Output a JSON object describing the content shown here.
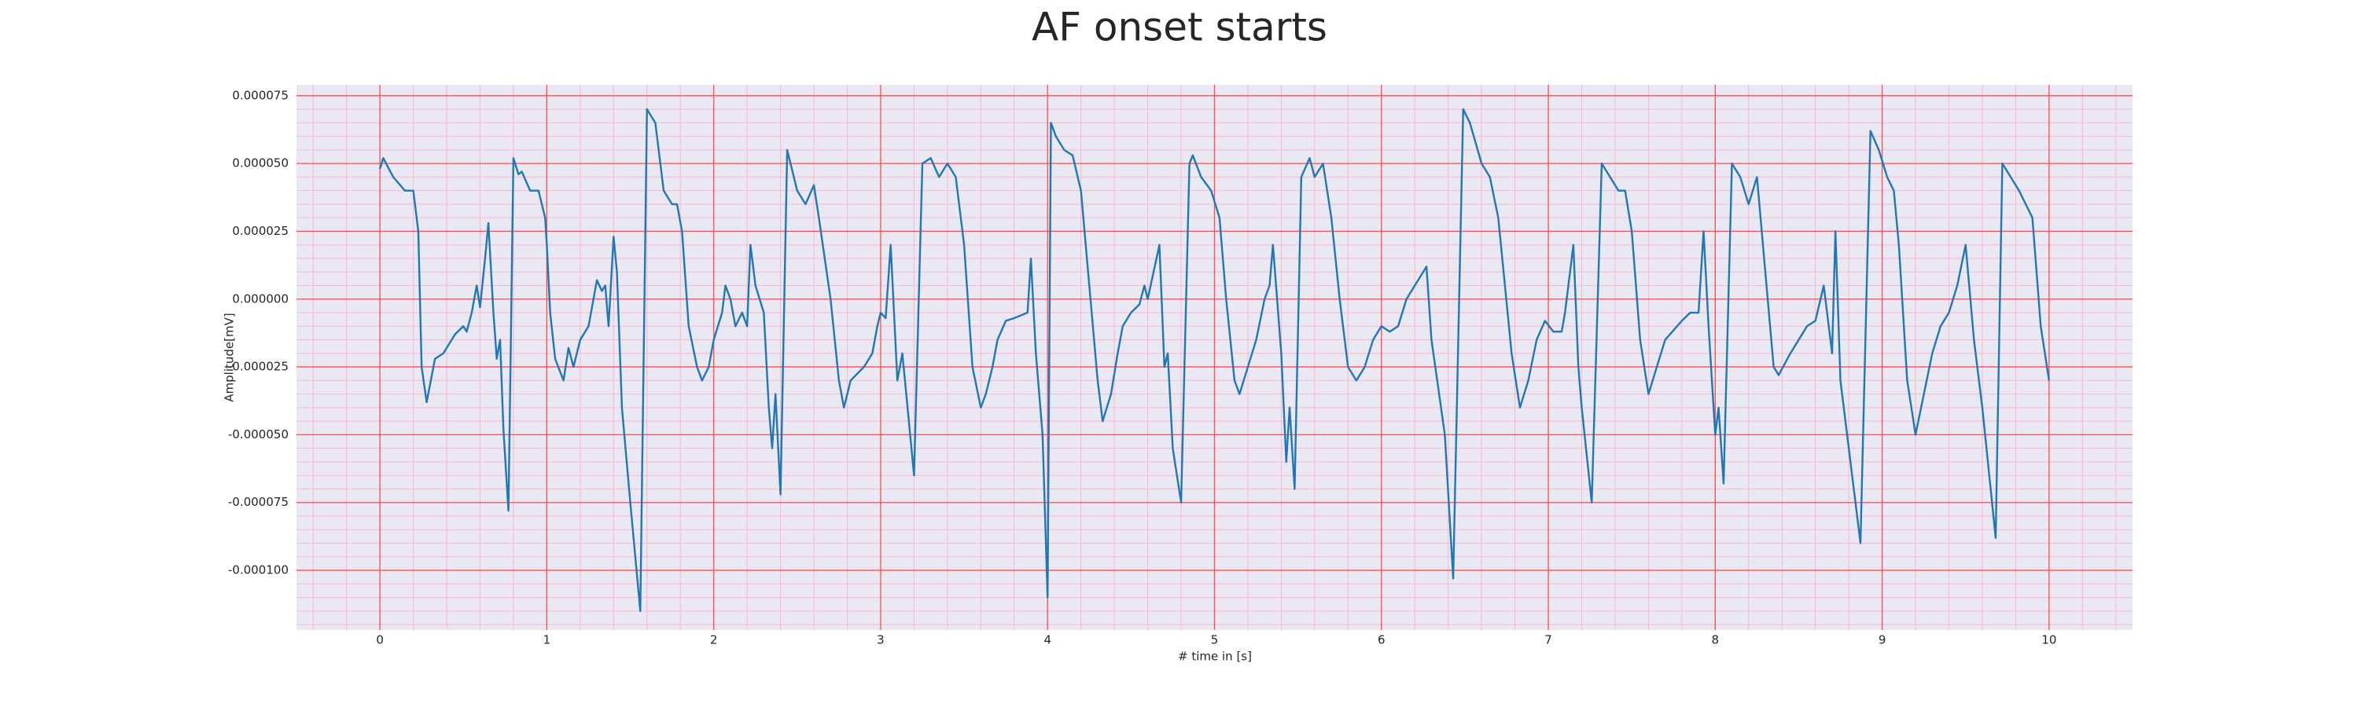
{
  "chart_data": {
    "type": "line",
    "title": "AF onset starts",
    "xlabel": "# time in [s]",
    "ylabel": "Amplitude[mV]",
    "color": "#1f77b4",
    "grid": true,
    "grid_color": "#ff4d4d",
    "minor_grid": {
      "x": 0.2,
      "y": 5e-06
    },
    "minor_grid_color": "#f7b8c8",
    "background": "#eae8f2",
    "xlim": [
      -0.5,
      10.5
    ],
    "ylim": [
      -0.000122,
      7.9e-05
    ],
    "xticks": [
      0,
      1,
      2,
      3,
      4,
      5,
      6,
      7,
      8,
      9,
      10
    ],
    "yticks": [
      7.5e-05,
      {
        "value": 5e-05,
        "label": "0.000050"
      },
      2.5e-05,
      {
        "value": 0,
        "label": "0.000000"
      },
      -2.5e-05,
      {
        "value": -5e-05,
        "label": "-0.000050"
      },
      -7.5e-05,
      {
        "value": -0.0001,
        "label": "-0.000100"
      }
    ],
    "x": [
      0,
      0.02,
      0.08,
      0.15,
      0.2,
      0.23,
      0.25,
      0.28,
      0.33,
      0.38,
      0.45,
      0.5,
      0.52,
      0.55,
      0.58,
      0.6,
      0.63,
      0.65,
      0.68,
      0.7,
      0.72,
      0.74,
      0.77,
      0.8,
      0.83,
      0.85,
      0.9,
      0.95,
      0.99,
      1.0,
      1.02,
      1.05,
      1.1,
      1.13,
      1.16,
      1.2,
      1.25,
      1.3,
      1.33,
      1.35,
      1.37,
      1.4,
      1.42,
      1.45,
      1.5,
      1.56,
      1.6,
      1.65,
      1.7,
      1.75,
      1.78,
      1.81,
      1.85,
      1.9,
      1.93,
      1.97,
      2.0,
      2.05,
      2.07,
      2.1,
      2.13,
      2.17,
      2.2,
      2.22,
      2.25,
      2.3,
      2.33,
      2.35,
      2.37,
      2.4,
      2.44,
      2.5,
      2.55,
      2.6,
      2.63,
      2.7,
      2.75,
      2.78,
      2.82,
      2.9,
      2.95,
      2.98,
      3.0,
      3.03,
      3.06,
      3.1,
      3.13,
      3.2,
      3.25,
      3.3,
      3.35,
      3.4,
      3.45,
      3.5,
      3.55,
      3.6,
      3.63,
      3.67,
      3.7,
      3.75,
      3.8,
      3.88,
      3.9,
      3.93,
      3.97,
      4.0,
      4.02,
      4.05,
      4.1,
      4.15,
      4.2,
      4.25,
      4.3,
      4.33,
      4.38,
      4.42,
      4.45,
      4.5,
      4.55,
      4.58,
      4.6,
      4.67,
      4.7,
      4.72,
      4.75,
      4.8,
      4.85,
      4.87,
      4.92,
      4.98,
      5.03,
      5.07,
      5.12,
      5.15,
      5.2,
      5.25,
      5.3,
      5.33,
      5.35,
      5.4,
      5.43,
      5.45,
      5.48,
      5.52,
      5.57,
      5.6,
      5.65,
      5.7,
      5.75,
      5.8,
      5.85,
      5.9,
      5.95,
      6.0,
      6.05,
      6.1,
      6.15,
      6.27,
      6.3,
      6.38,
      6.43,
      6.49,
      6.53,
      6.6,
      6.65,
      6.7,
      6.78,
      6.83,
      6.88,
      6.93,
      6.98,
      7.03,
      7.08,
      7.1,
      7.15,
      7.18,
      7.2,
      7.26,
      7.32,
      7.37,
      7.42,
      7.46,
      7.5,
      7.55,
      7.6,
      7.65,
      7.7,
      7.8,
      7.85,
      7.9,
      7.93,
      7.96,
      8.0,
      8.02,
      8.05,
      8.1,
      8.15,
      8.2,
      8.25,
      8.3,
      8.35,
      8.38,
      8.45,
      8.5,
      8.55,
      8.6,
      8.65,
      8.7,
      8.72,
      8.75,
      8.8,
      8.87,
      8.93,
      8.98,
      9.03,
      9.07,
      9.1,
      9.15,
      9.2,
      9.25,
      9.3,
      9.35,
      9.4,
      9.45,
      9.5,
      9.55,
      9.6,
      9.68,
      9.72,
      9.77,
      9.82,
      9.9,
      9.95,
      10.0
    ],
    "values": [
      4.8e-05,
      5.2e-05,
      4.5e-05,
      4e-05,
      4e-05,
      2.5e-05,
      -2.5e-05,
      -3.8e-05,
      -2.2e-05,
      -2e-05,
      -1.3e-05,
      -1e-05,
      -1.2e-05,
      -5e-06,
      5e-06,
      -3e-06,
      1.5e-05,
      2.8e-05,
      -5e-06,
      -2.2e-05,
      -1.5e-05,
      -4.8e-05,
      -7.8e-05,
      5.2e-05,
      4.6e-05,
      4.7e-05,
      4e-05,
      4e-05,
      3e-05,
      2e-05,
      -5e-06,
      -2.2e-05,
      -3e-05,
      -1.8e-05,
      -2.5e-05,
      -1.5e-05,
      -1e-05,
      7e-06,
      3e-06,
      5e-06,
      -1e-05,
      2.3e-05,
      1e-05,
      -4e-05,
      -7.5e-05,
      -0.000115,
      7e-05,
      6.5e-05,
      4e-05,
      3.5e-05,
      3.5e-05,
      2.5e-05,
      -1e-05,
      -2.5e-05,
      -3e-05,
      -2.5e-05,
      -1.5e-05,
      -5e-06,
      5e-06,
      0,
      -1e-05,
      -5e-06,
      -1e-05,
      2e-05,
      5e-06,
      -5e-06,
      -4e-05,
      -5.5e-05,
      -3.5e-05,
      -7.2e-05,
      5.5e-05,
      4e-05,
      3.5e-05,
      4.2e-05,
      3e-05,
      0,
      -3e-05,
      -4e-05,
      -3e-05,
      -2.5e-05,
      -2e-05,
      -1e-05,
      -5e-06,
      -7e-06,
      2e-05,
      -3e-05,
      -2e-05,
      -6.5e-05,
      5e-05,
      5.2e-05,
      4.5e-05,
      5e-05,
      4.5e-05,
      2e-05,
      -2.5e-05,
      -4e-05,
      -3.5e-05,
      -2.5e-05,
      -1.5e-05,
      -8e-06,
      -7e-06,
      -5e-06,
      1.5e-05,
      -2e-05,
      -5e-05,
      -0.00011,
      6.5e-05,
      6e-05,
      5.5e-05,
      5.3e-05,
      4e-05,
      5e-06,
      -3e-05,
      -4.5e-05,
      -3.5e-05,
      -2e-05,
      -1e-05,
      -5e-06,
      -2e-06,
      5e-06,
      0,
      2e-05,
      -2.5e-05,
      -2e-05,
      -5.5e-05,
      -7.5e-05,
      5e-05,
      5.3e-05,
      4.5e-05,
      4e-05,
      3e-05,
      0,
      -3e-05,
      -3.5e-05,
      -2.5e-05,
      -1.5e-05,
      0,
      5e-06,
      2e-05,
      -2e-05,
      -6e-05,
      -4e-05,
      -7e-05,
      4.5e-05,
      5.2e-05,
      4.5e-05,
      5e-05,
      3e-05,
      0,
      -2.5e-05,
      -3e-05,
      -2.5e-05,
      -1.5e-05,
      -1e-05,
      -1.2e-05,
      -1e-05,
      0,
      1.2e-05,
      -1.5e-05,
      -5e-05,
      -0.000103,
      7e-05,
      6.5e-05,
      5e-05,
      4.5e-05,
      3e-05,
      -2e-05,
      -4e-05,
      -3e-05,
      -1.5e-05,
      -8e-06,
      -1.2e-05,
      -1.2e-05,
      -5e-06,
      2e-05,
      -2.5e-05,
      -4e-05,
      -7.5e-05,
      5e-05,
      4.5e-05,
      4e-05,
      4e-05,
      2.5e-05,
      -1.5e-05,
      -3.5e-05,
      -2.5e-05,
      -1.5e-05,
      -8e-06,
      -5e-06,
      -5e-06,
      2.5e-05,
      -1e-05,
      -5e-05,
      -4e-05,
      -6.8e-05,
      5e-05,
      4.5e-05,
      3.5e-05,
      4.5e-05,
      1e-05,
      -2.5e-05,
      -2.8e-05,
      -2e-05,
      -1.5e-05,
      -1e-05,
      -8e-06,
      5e-06,
      -2e-05,
      2.5e-05,
      -3e-05,
      -5.5e-05,
      -9e-05,
      6.2e-05,
      5.5e-05,
      4.5e-05,
      4e-05,
      2e-05,
      -3e-05,
      -5e-05,
      -3.5e-05,
      -2e-05,
      -1e-05,
      -5e-06,
      5e-06,
      2e-05,
      -1.5e-05,
      -4e-05,
      -8.8e-05,
      5e-05,
      4.5e-05,
      4e-05,
      3e-05,
      -1e-05,
      -3e-05
    ]
  }
}
